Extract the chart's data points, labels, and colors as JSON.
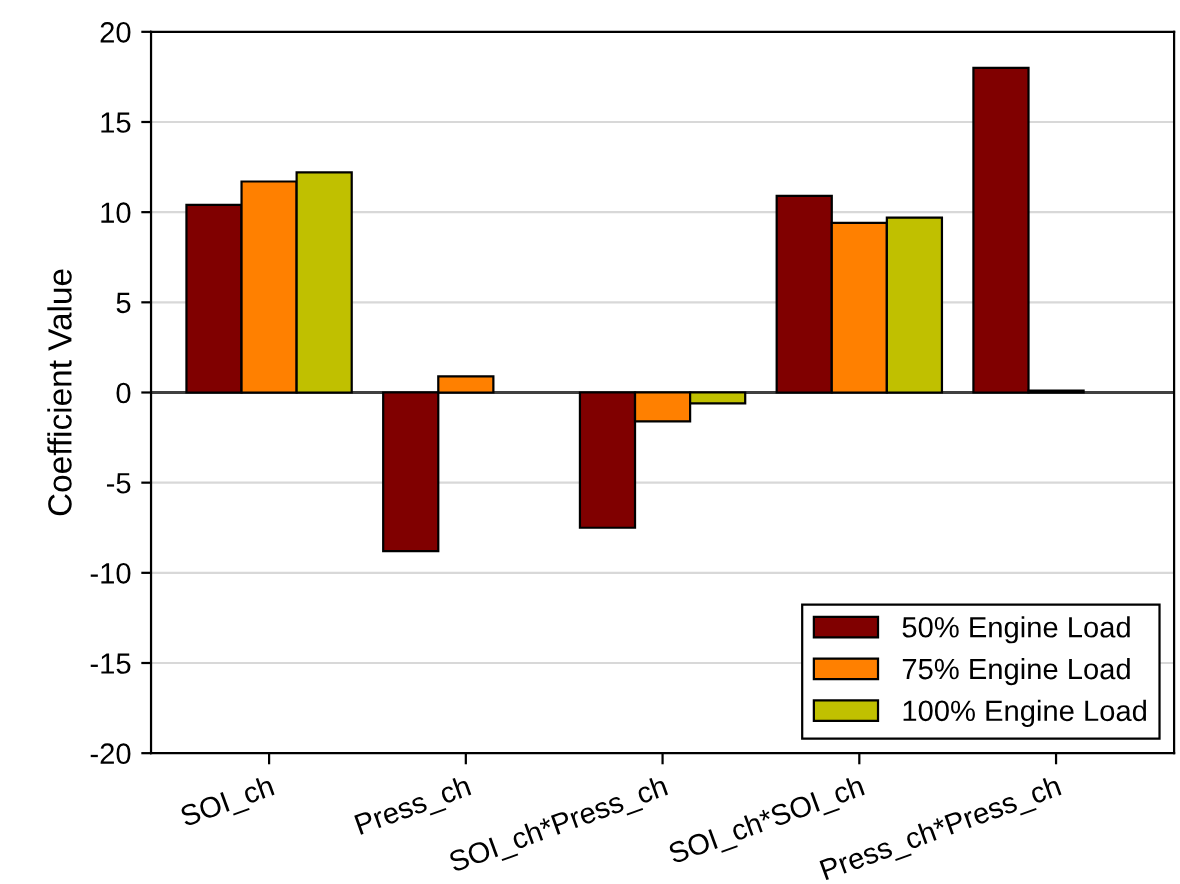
{
  "chart_data": {
    "type": "bar",
    "ylabel": "Coefficient Value",
    "categories": [
      "SOI_ch",
      "Press_ch",
      "SOI_ch*Press_ch",
      "SOI_ch*SOI_ch",
      "Press_ch*Press_ch"
    ],
    "series": [
      {
        "name": "50% Engine Load",
        "color": "#800000",
        "values": [
          10.4,
          -8.8,
          -7.5,
          10.9,
          18.0
        ]
      },
      {
        "name": "75% Engine Load",
        "color": "#ff8000",
        "values": [
          11.7,
          0.9,
          -1.6,
          9.4,
          0.1
        ]
      },
      {
        "name": "100% Engine Load",
        "color": "#c0c000",
        "values": [
          12.2,
          null,
          -0.6,
          9.7,
          null
        ]
      }
    ],
    "ylim": [
      -20,
      20
    ],
    "yticks": [
      -20,
      -15,
      -10,
      -5,
      0,
      5,
      10,
      15,
      20
    ],
    "ref_lines": [
      {
        "axis": "y",
        "value": 0,
        "color": "#404040"
      }
    ],
    "grid": "y",
    "legend": "bottom right"
  }
}
